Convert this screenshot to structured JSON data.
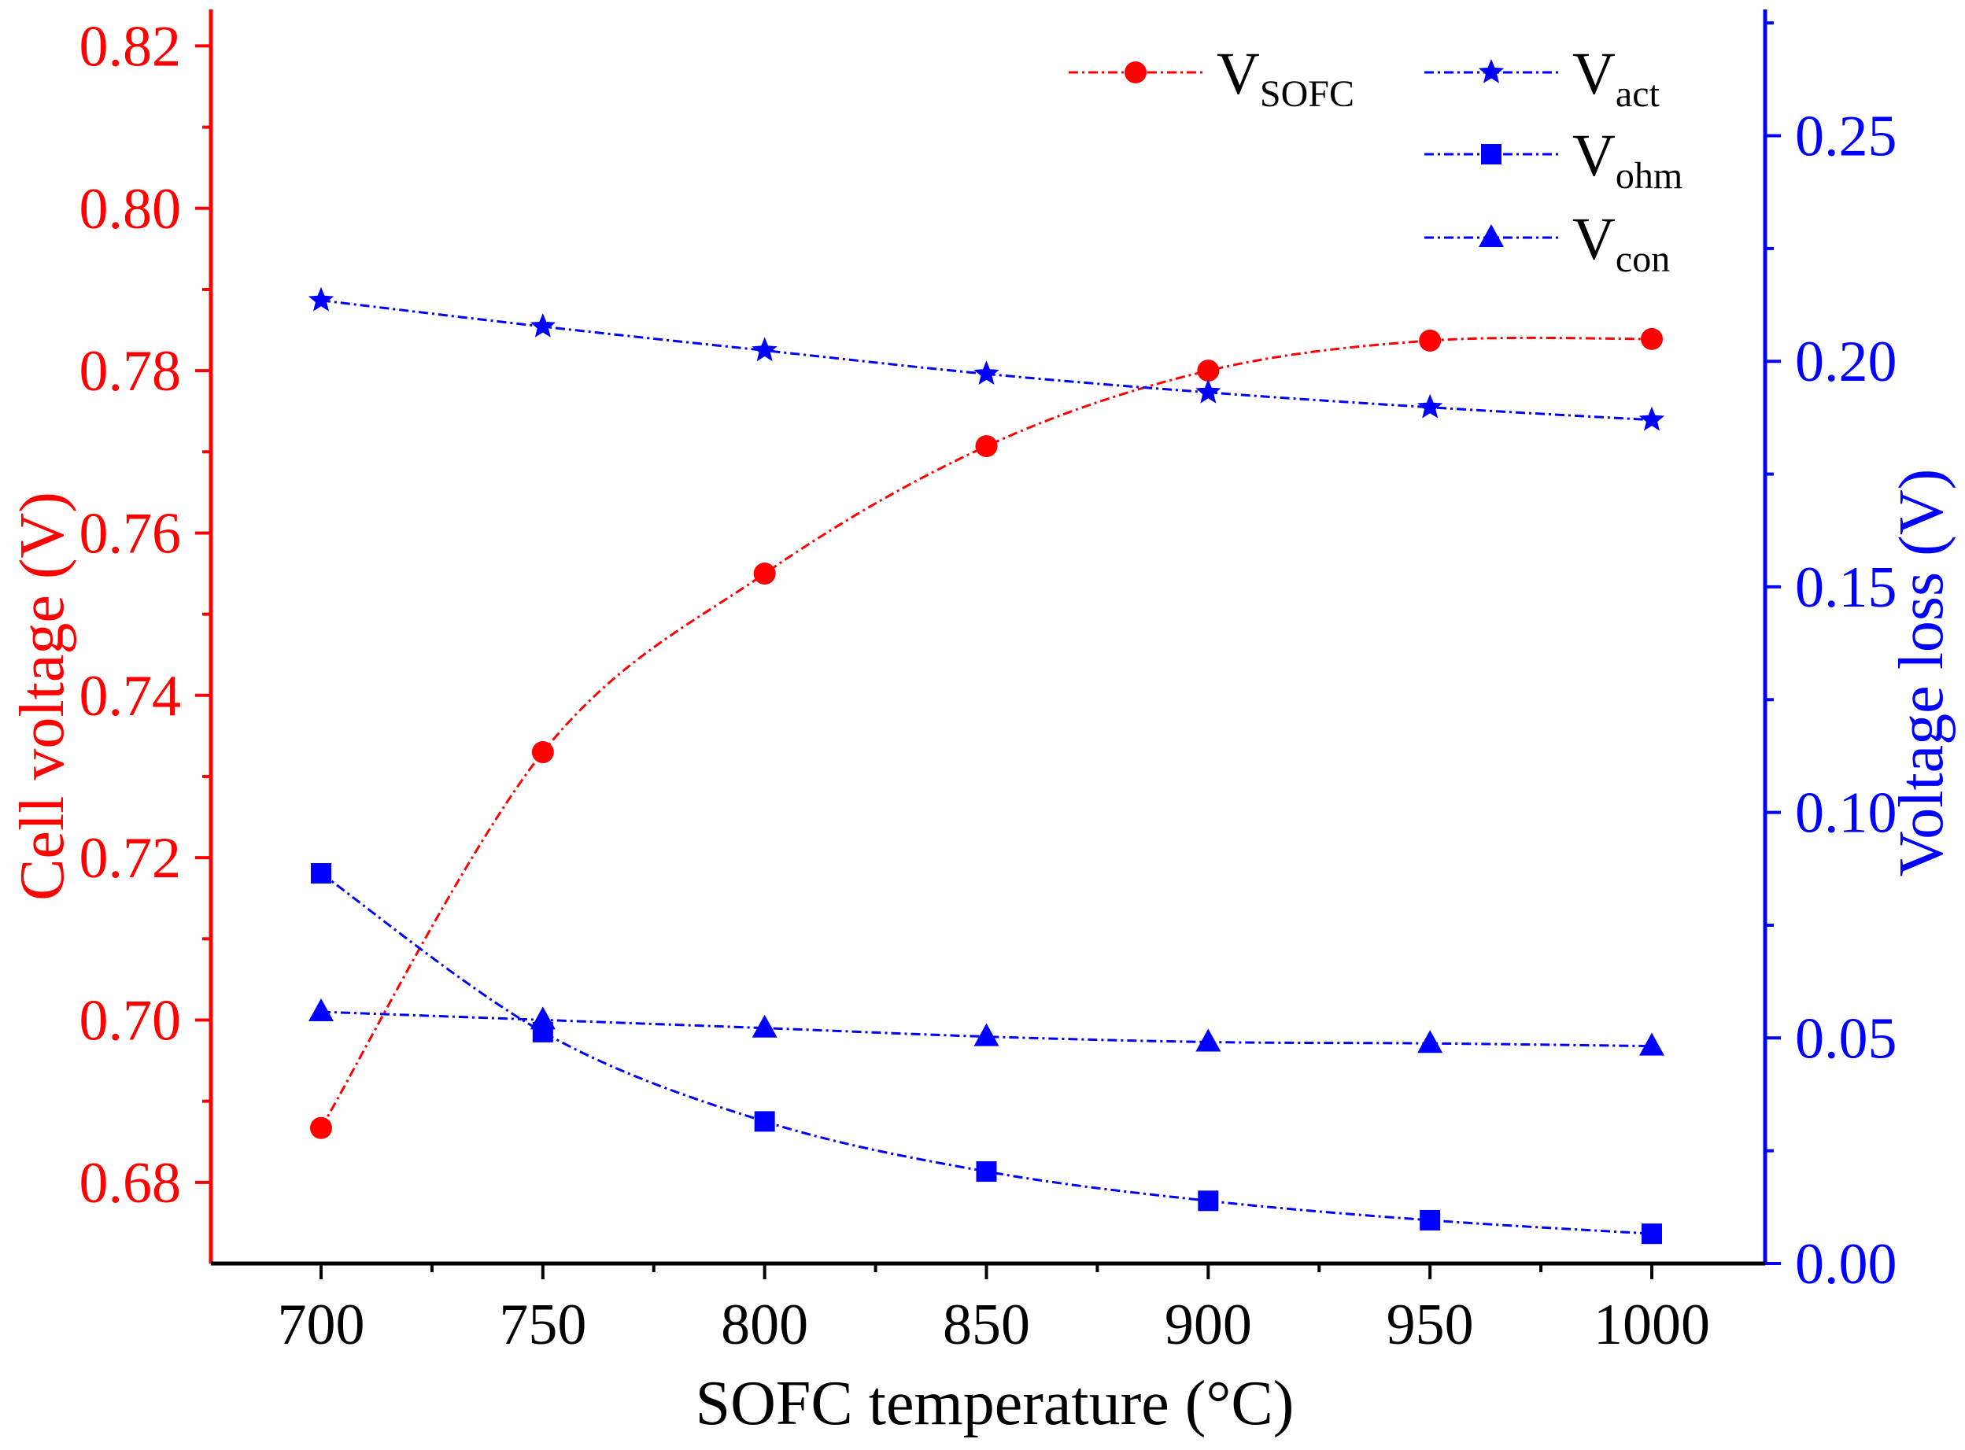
{
  "chart_data": {
    "type": "line",
    "xlabel": "SOFC temperature (°C)",
    "ylabel_left": "Cell voltage (V)",
    "ylabel_right": "Voltage loss (V)",
    "x": [
      700,
      750,
      800,
      850,
      900,
      950,
      1000
    ],
    "xlim": [
      675,
      1025
    ],
    "x_ticks": [
      "700",
      "750",
      "800",
      "850",
      "900",
      "950",
      "1000"
    ],
    "ylim_left": [
      0.67,
      0.8245
    ],
    "ylim_right": [
      0.0,
      0.278
    ],
    "y_ticks_left": [
      "0.68",
      "0.70",
      "0.72",
      "0.74",
      "0.76",
      "0.78",
      "0.80",
      "0.82"
    ],
    "y_ticks_right": [
      "0.00",
      "0.05",
      "0.10",
      "0.15",
      "0.20",
      "0.25"
    ],
    "grid": false,
    "legend_position": "top-right",
    "colors": {
      "left_axis": "#ff0000",
      "right_axis": "#0000ff",
      "bottom_axis": "#000000"
    },
    "series": [
      {
        "name": "V",
        "sub": "SOFC",
        "axis": "left",
        "marker": "circle",
        "color": "#ff0000",
        "values": [
          0.6867,
          0.733,
          0.755,
          0.7707,
          0.78,
          0.7837,
          0.7839
        ]
      },
      {
        "name": "V",
        "sub": "act",
        "axis": "right",
        "marker": "star",
        "color": "#0000ff",
        "values": [
          0.2135,
          0.2077,
          0.2024,
          0.1972,
          0.1931,
          0.1898,
          0.187
        ]
      },
      {
        "name": "V",
        "sub": "ohm",
        "axis": "right",
        "marker": "square",
        "color": "#0000ff",
        "values": [
          0.0865,
          0.0513,
          0.0315,
          0.0204,
          0.0139,
          0.0096,
          0.0066
        ]
      },
      {
        "name": "V",
        "sub": "con",
        "axis": "right",
        "marker": "triangle",
        "color": "#0000ff",
        "values": [
          0.0558,
          0.054,
          0.0522,
          0.0503,
          0.0491,
          0.0488,
          0.0482
        ]
      }
    ]
  }
}
